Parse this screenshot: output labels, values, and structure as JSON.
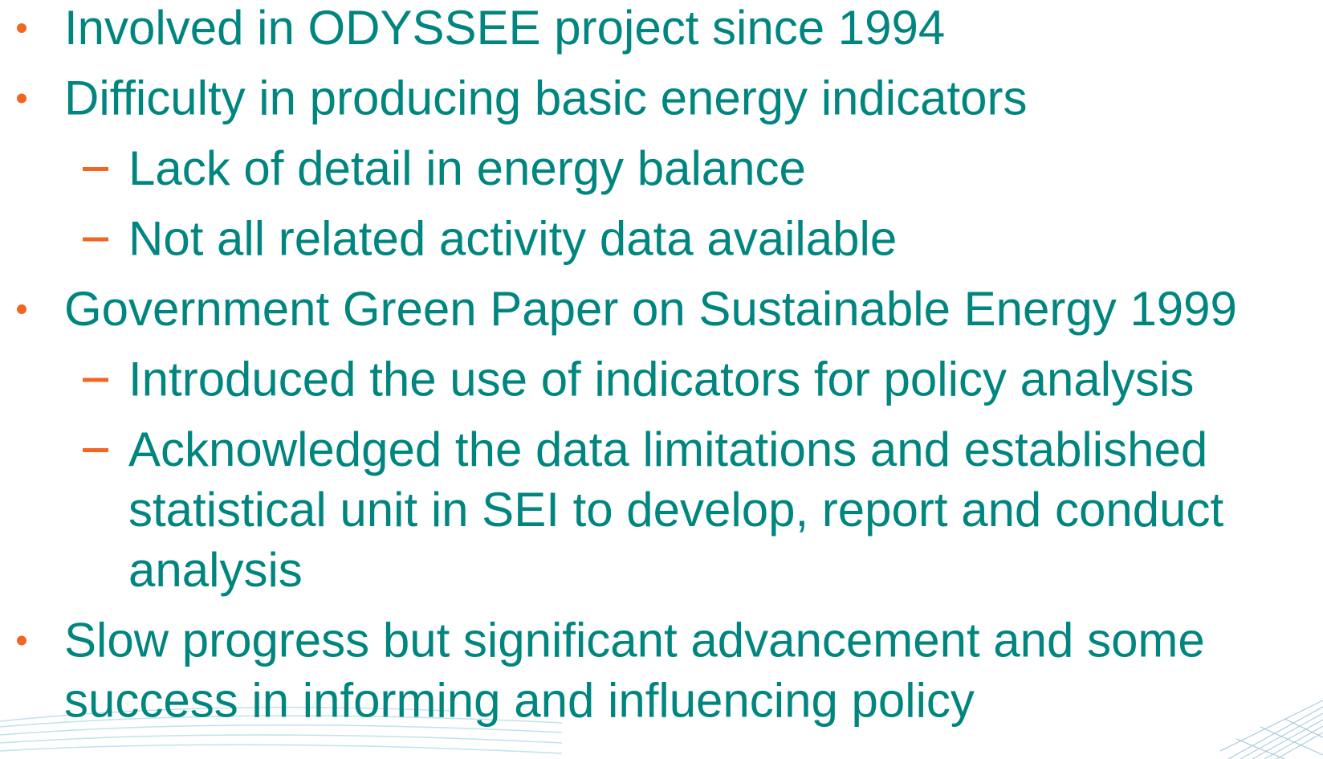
{
  "items": [
    {
      "lines": [
        "Involved in ODYSSEE project since 1994"
      ],
      "subitems": []
    },
    {
      "lines": [
        "Difficulty in producing basic energy indicators"
      ],
      "subitems": [
        {
          "lines": [
            "Lack of detail in energy balance"
          ]
        },
        {
          "lines": [
            "Not all related activity data available"
          ]
        }
      ]
    },
    {
      "lines": [
        "Government Green Paper on Sustainable Energy 1999"
      ],
      "subitems": [
        {
          "lines": [
            "Introduced the use of indicators for policy analysis"
          ]
        },
        {
          "lines": [
            "Acknowledged the data limitations and established",
            "statistical unit in SEI to develop, report and conduct",
            "analysis"
          ]
        }
      ]
    },
    {
      "lines": [
        "Slow progress but significant advancement and some",
        "success in informing and influencing policy"
      ],
      "subitems": []
    }
  ]
}
